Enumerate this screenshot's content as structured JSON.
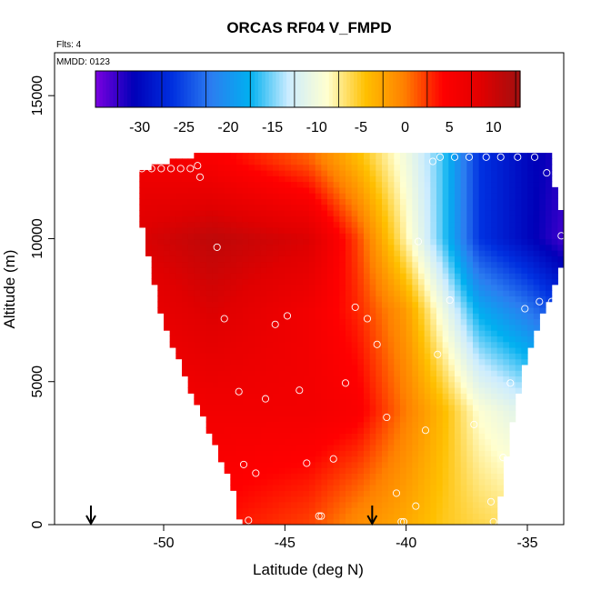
{
  "chart_data": {
    "type": "heatmap",
    "title": "ORCAS RF04 V_FMPD",
    "annotations": {
      "flights": "Flts: 4",
      "date": "MMDD: 0123"
    },
    "xlabel": "Latitude (deg N)",
    "ylabel": "Altitude (m)",
    "xlim": [
      -54.5,
      -33.5
    ],
    "ylim": [
      0,
      16500
    ],
    "x_ticks": [
      -50,
      -45,
      -40,
      -35
    ],
    "y_ticks": [
      0,
      5000,
      10000,
      15000
    ],
    "x_tick_labels": [
      "-50",
      "-45",
      "-40",
      "-35"
    ],
    "y_tick_labels": [
      "0",
      "5000",
      "10000",
      "15000"
    ],
    "colorbar": {
      "range": [
        -35,
        13
      ],
      "ticks": [
        -30,
        -25,
        -20,
        -15,
        -10,
        -5,
        0,
        5,
        10
      ],
      "tick_labels": [
        "-30",
        "-25",
        "-20",
        "-15",
        "-10",
        "-5",
        "0",
        "5",
        "10"
      ],
      "colors": [
        "#7b00e0",
        "#0000b8",
        "#0030e0",
        "#2c7df0",
        "#00b0f0",
        "#ccecff",
        "#ffffd0",
        "#ffc000",
        "#ff8000",
        "#ff0000",
        "#e00000",
        "#a01010"
      ]
    },
    "field": {
      "lat_nodes": [
        -51,
        -48,
        -44,
        -42,
        -40,
        -38.5,
        -37,
        -35,
        -33.5
      ],
      "alt_nodes": [
        0,
        4000,
        7500,
        10000,
        12800
      ],
      "values": [
        [
          4,
          4,
          2,
          -1,
          -3,
          -5,
          -6,
          -7,
          -8
        ],
        [
          5,
          6,
          6,
          5,
          0,
          -4,
          -9,
          -12,
          -15
        ],
        [
          7,
          9,
          6,
          3,
          -2,
          -10,
          -18,
          -22,
          -26
        ],
        [
          9,
          11,
          9,
          2,
          -8,
          -16,
          -26,
          -30,
          -33
        ],
        [
          6,
          5,
          1,
          -4,
          -10,
          -16,
          -26,
          -30,
          -32
        ]
      ]
    },
    "outline_lat": [
      [
        0,
        -46.8,
        -36.4
      ],
      [
        1500,
        -47.2,
        -36.0
      ],
      [
        3000,
        -48.0,
        -35.8
      ],
      [
        4500,
        -48.8,
        -35.4
      ],
      [
        6000,
        -49.5,
        -35.0
      ],
      [
        7500,
        -50.2,
        -34.3
      ],
      [
        9000,
        -50.5,
        -33.6
      ],
      [
        11000,
        -51.0,
        -33.6
      ],
      [
        12400,
        -51.0,
        -34.1
      ],
      [
        12900,
        -48.8,
        -34.1
      ]
    ],
    "sample_points": [
      [
        -50.9,
        12450
      ],
      [
        -50.5,
        12450
      ],
      [
        -50.1,
        12450
      ],
      [
        -49.7,
        12450
      ],
      [
        -49.3,
        12450
      ],
      [
        -48.9,
        12450
      ],
      [
        -48.6,
        12550
      ],
      [
        -48.5,
        12150
      ],
      [
        -47.8,
        9700
      ],
      [
        -47.5,
        7200
      ],
      [
        -46.9,
        4650
      ],
      [
        -46.7,
        2100
      ],
      [
        -46.5,
        150
      ],
      [
        -46.2,
        1800
      ],
      [
        -45.8,
        4400
      ],
      [
        -45.4,
        7000
      ],
      [
        -44.9,
        7300
      ],
      [
        -44.4,
        4700
      ],
      [
        -44.1,
        2150
      ],
      [
        -43.6,
        300
      ],
      [
        -43.5,
        300
      ],
      [
        -43.0,
        2300
      ],
      [
        -42.5,
        4950
      ],
      [
        -42.1,
        7600
      ],
      [
        -41.6,
        7200
      ],
      [
        -41.2,
        6300
      ],
      [
        -40.8,
        3750
      ],
      [
        -40.4,
        1100
      ],
      [
        -40.2,
        100
      ],
      [
        -40.1,
        100
      ],
      [
        -39.6,
        650
      ],
      [
        -39.5,
        9900
      ],
      [
        -39.2,
        3300
      ],
      [
        -38.9,
        12700
      ],
      [
        -38.7,
        5950
      ],
      [
        -38.6,
        12850
      ],
      [
        -38.2,
        7850
      ],
      [
        -38.0,
        12850
      ],
      [
        -37.4,
        12850
      ],
      [
        -37.2,
        3500
      ],
      [
        -36.7,
        12850
      ],
      [
        -36.5,
        800
      ],
      [
        -36.4,
        100
      ],
      [
        -36.1,
        12850
      ],
      [
        -36.0,
        2350
      ],
      [
        -35.7,
        4950
      ],
      [
        -35.4,
        12850
      ],
      [
        -35.1,
        7550
      ],
      [
        -34.7,
        12850
      ],
      [
        -34.5,
        7800
      ],
      [
        -34.2,
        12300
      ],
      [
        -34.0,
        7800
      ],
      [
        -33.6,
        10100
      ],
      [
        -33.6,
        8150
      ]
    ],
    "arrows_lat": [
      -53.0,
      -41.4
    ],
    "legend_placement": "top-inside",
    "grid": false
  }
}
